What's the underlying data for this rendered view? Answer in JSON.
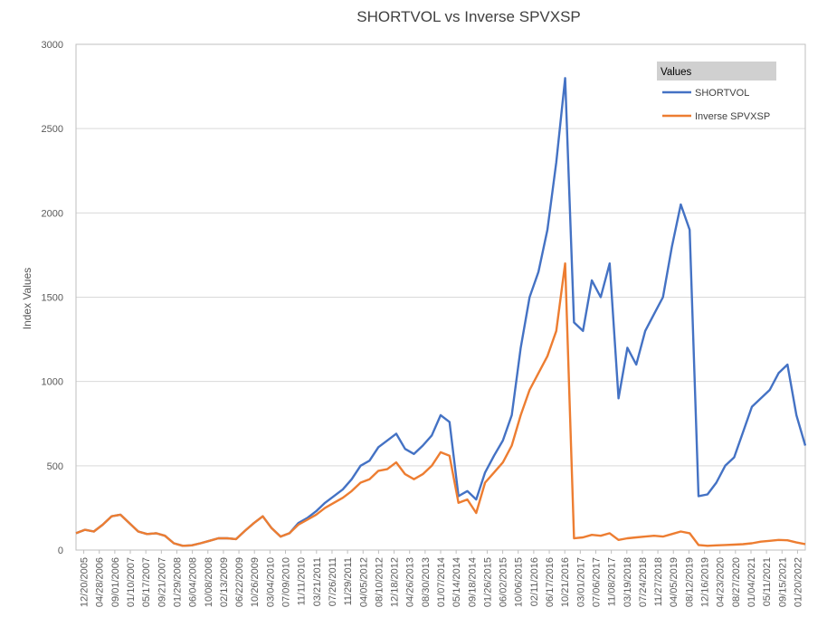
{
  "chart_data": {
    "type": "line",
    "title": "SHORTVOL vs Inverse SPVXSP",
    "xlabel": "",
    "ylabel": "Index Values",
    "ylim": [
      0,
      3000
    ],
    "yticks": [
      0,
      500,
      1000,
      1500,
      2000,
      2500,
      3000
    ],
    "grid": "horizontal",
    "legend": {
      "title": "Values",
      "position": "top-right"
    },
    "x_tick_labels": [
      "12/20/2005",
      "04/28/2006",
      "09/01/2006",
      "01/10/2007",
      "05/17/2007",
      "09/21/2007",
      "01/29/2008",
      "06/04/2008",
      "10/08/2008",
      "02/13/2009",
      "06/22/2009",
      "10/26/2009",
      "03/04/2010",
      "07/09/2010",
      "11/11/2010",
      "03/21/2011",
      "07/26/2011",
      "11/29/2011",
      "04/05/2012",
      "08/10/2012",
      "12/18/2012",
      "04/26/2013",
      "08/30/2013",
      "01/07/2014",
      "05/14/2014",
      "09/18/2014",
      "01/26/2015",
      "06/02/2015",
      "10/06/2015",
      "02/11/2016",
      "06/17/2016",
      "10/21/2016",
      "03/01/2017",
      "07/06/2017",
      "11/08/2017",
      "03/19/2018",
      "07/24/2018",
      "11/27/2018",
      "04/05/2019",
      "08/12/2019",
      "12/16/2019",
      "04/23/2020",
      "08/27/2020",
      "01/04/2021",
      "05/11/2021",
      "09/15/2021",
      "01/20/2022"
    ],
    "series": [
      {
        "name": "SHORTVOL",
        "color": "#4472C4",
        "values": [
          100,
          120,
          110,
          150,
          200,
          210,
          160,
          110,
          95,
          100,
          85,
          40,
          25,
          28,
          40,
          55,
          70,
          70,
          65,
          115,
          160,
          200,
          130,
          80,
          100,
          160,
          190,
          230,
          280,
          320,
          360,
          420,
          500,
          530,
          610,
          650,
          690,
          600,
          570,
          620,
          680,
          800,
          760,
          320,
          350,
          300,
          460,
          560,
          650,
          800,
          1200,
          1500,
          1650,
          1900,
          2300,
          2800,
          1350,
          1300,
          1600,
          1500,
          1700,
          900,
          1200,
          1100,
          1300,
          1400,
          1500,
          1800,
          2050,
          1900,
          320,
          330,
          400,
          500,
          550,
          700,
          850,
          900,
          950,
          1050,
          1100,
          800,
          620
        ]
      },
      {
        "name": "Inverse SPVXSP",
        "color": "#ED7D31",
        "values": [
          100,
          120,
          110,
          150,
          200,
          210,
          160,
          110,
          95,
          100,
          85,
          40,
          25,
          28,
          40,
          55,
          70,
          70,
          65,
          115,
          160,
          200,
          130,
          80,
          100,
          150,
          180,
          210,
          250,
          280,
          310,
          350,
          400,
          420,
          470,
          480,
          520,
          450,
          420,
          450,
          500,
          580,
          560,
          280,
          300,
          220,
          400,
          460,
          520,
          620,
          800,
          950,
          1050,
          1150,
          1300,
          1700,
          70,
          75,
          90,
          85,
          100,
          60,
          70,
          75,
          80,
          85,
          80,
          95,
          110,
          100,
          30,
          25,
          28,
          30,
          32,
          35,
          40,
          50,
          55,
          60,
          58,
          45,
          35
        ]
      }
    ]
  }
}
